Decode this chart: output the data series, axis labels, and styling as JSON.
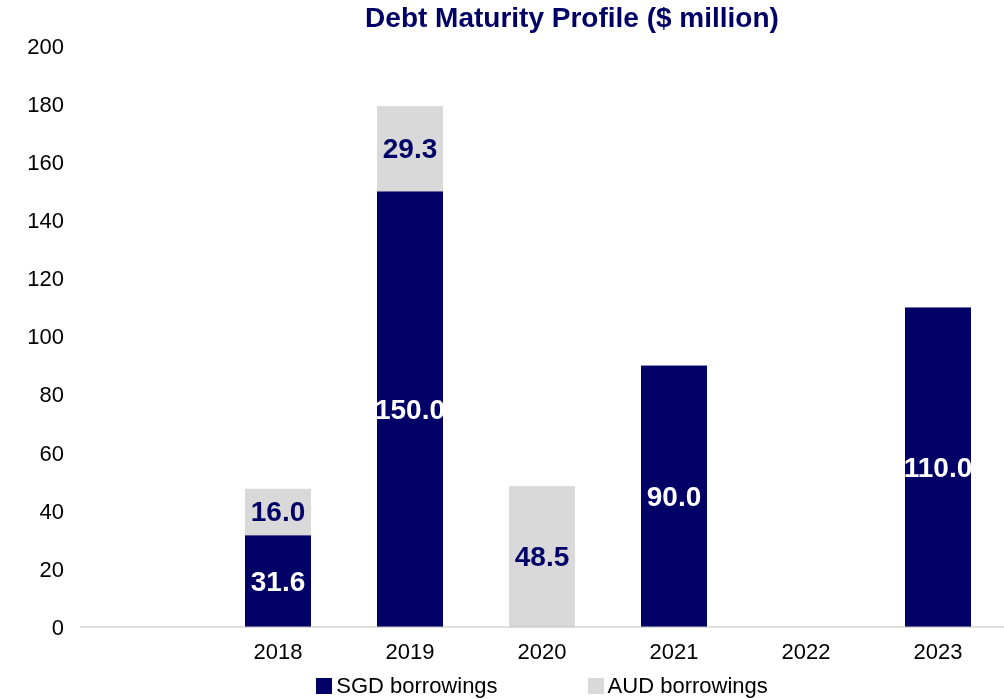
{
  "chart_data": {
    "type": "bar",
    "title": "Debt Maturity Profile ($ million)",
    "categories": [
      null,
      "2018",
      "2019",
      "2020",
      "2021",
      "2022",
      "2023"
    ],
    "stacked": true,
    "series": [
      {
        "name": "SGD borrowings",
        "color": "#000066",
        "values": [
          null,
          31.6,
          150.0,
          null,
          90.0,
          null,
          110.0
        ],
        "value_labels": [
          null,
          "31.6",
          "150.0",
          null,
          "90.0",
          null,
          "110.0"
        ]
      },
      {
        "name": "AUD borrowings",
        "color": "#d9d9d9",
        "values": [
          null,
          16.0,
          29.3,
          48.5,
          null,
          null,
          null
        ],
        "value_labels": [
          null,
          "16.0",
          "29.3",
          "48.5",
          null,
          null,
          null
        ]
      }
    ],
    "ylim": [
      0,
      200
    ],
    "yticks": [
      0,
      20,
      40,
      60,
      80,
      100,
      120,
      140,
      160,
      180,
      200
    ],
    "grid": false,
    "legend": "bottom"
  }
}
